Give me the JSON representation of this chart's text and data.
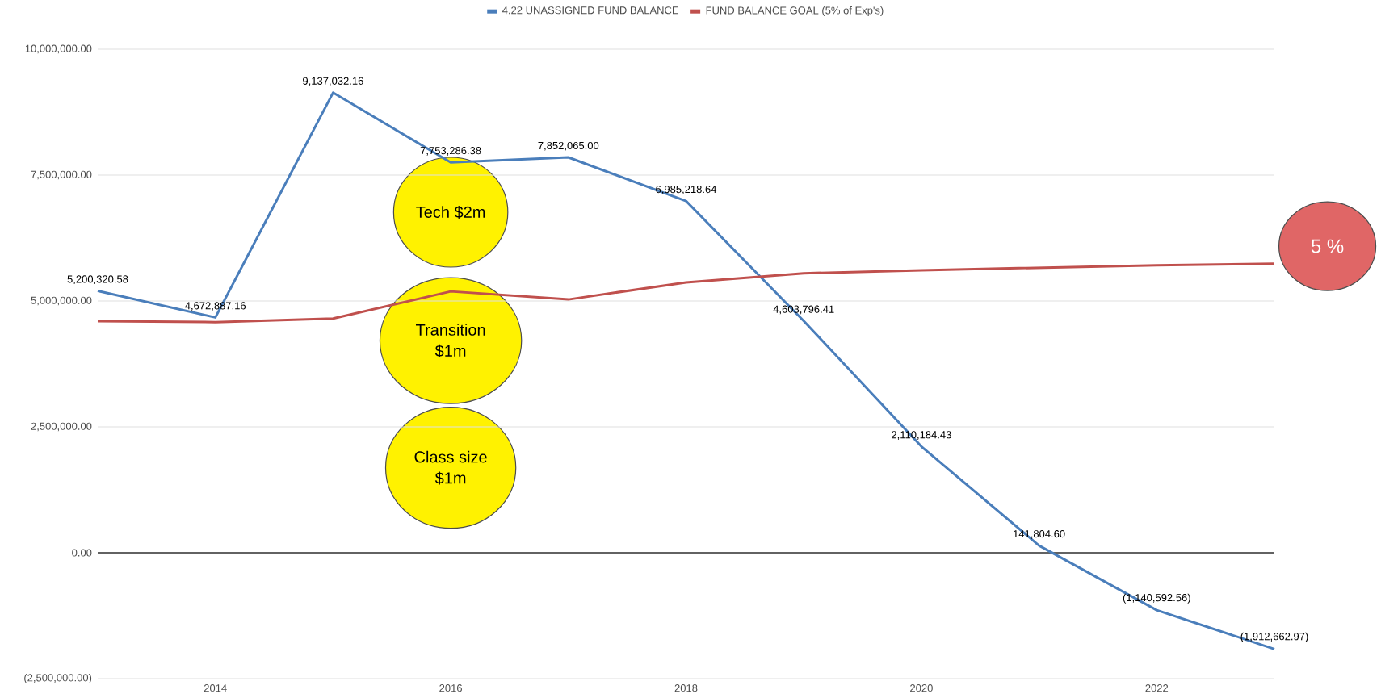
{
  "chart_data": {
    "type": "line",
    "x": [
      2013,
      2014,
      2015,
      2016,
      2017,
      2018,
      2019,
      2020,
      2021,
      2022,
      2023
    ],
    "series": [
      {
        "name": "4.22 UNASSIGNED FUND BALANCE",
        "color": "#4a7ebb",
        "values": [
          5200320.58,
          4672887.16,
          9137032.16,
          7753286.38,
          7852065.0,
          6985218.64,
          4603796.41,
          2110184.43,
          141804.6,
          -1140592.56,
          -1912662.97
        ],
        "value_labels": [
          "5,200,320.58",
          "4,672,887.16",
          "9,137,032.16",
          "7,753,286.38",
          "7,852,065.00",
          "6,985,218.64",
          "4,603,796.41",
          "2,110,184.43",
          "141,804.60",
          "(1,140,592.56)",
          "(1,912,662.97)"
        ]
      },
      {
        "name": "FUND BALANCE GOAL (5% of Exp's)",
        "color": "#c0504d",
        "values": [
          4600000,
          4580000,
          4650000,
          5190000,
          5030000,
          5370000,
          5550000,
          5610000,
          5660000,
          5710000,
          5740000
        ]
      }
    ],
    "xlim": [
      2013,
      2023
    ],
    "xticks": [
      2014,
      2016,
      2018,
      2020,
      2022
    ],
    "ylim": [
      -2500000,
      10000000
    ],
    "yticks": [
      {
        "value": -2500000,
        "label": "(2,500,000.00)"
      },
      {
        "value": 0,
        "label": "0.00"
      },
      {
        "value": 2500000,
        "label": "2,500,000.00"
      },
      {
        "value": 5000000,
        "label": "5,000,000.00"
      },
      {
        "value": 7500000,
        "label": "7,500,000.00"
      },
      {
        "value": 10000000,
        "label": "10,000,000.00"
      }
    ],
    "grid": "y",
    "legend": "top",
    "marker": "none",
    "line_style": "solid",
    "ref_lines": [
      {
        "axis": "y",
        "value": 0,
        "color": "#333333"
      }
    ],
    "annotations": [
      "Tech $2m",
      "Transition $1m",
      "Class size $1m",
      "5 %"
    ]
  }
}
